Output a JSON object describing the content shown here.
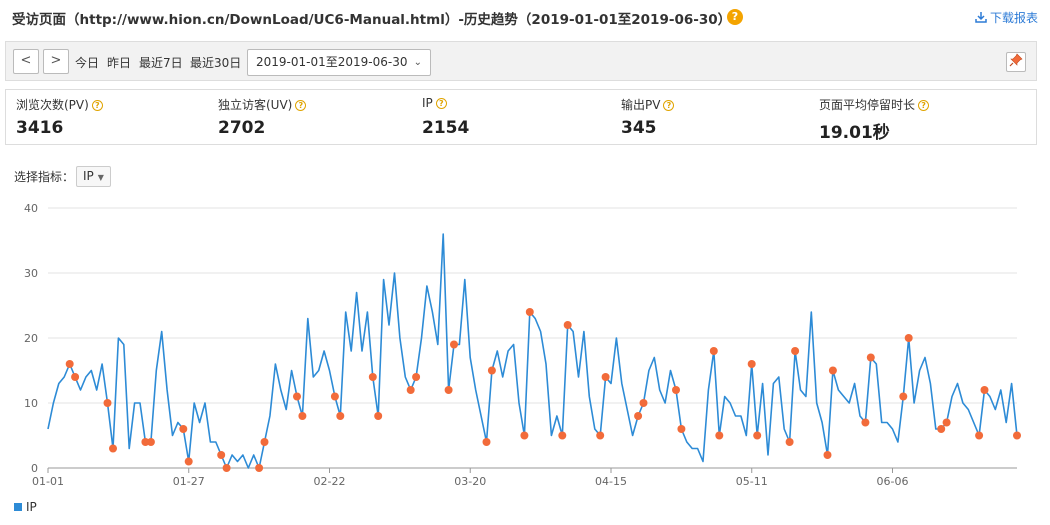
{
  "header": {
    "title": "受访页面（http://www.hion.cn/DownLoad/UC6-Manual.html）-历史趋势（2019-01-01至2019-06-30）",
    "help_glyph": "?",
    "download_label": "下载报表"
  },
  "toolbar": {
    "prev_glyph": "<",
    "next_glyph": ">",
    "quick_ranges": [
      "今日",
      "昨日",
      "最近7日",
      "最近30日"
    ],
    "date_range": "2019-01-01至2019-06-30"
  },
  "stats": [
    {
      "label": "浏览次数(PV)",
      "value": "3416"
    },
    {
      "label": "独立访客(UV)",
      "value": "2702"
    },
    {
      "label": "IP",
      "value": "2154"
    },
    {
      "label": "输出PV",
      "value": "345"
    },
    {
      "label": "页面平均停留时长",
      "value": "19.01秒"
    }
  ],
  "metric_selector": {
    "label": "选择指标：",
    "selected": "IP"
  },
  "colors": {
    "line": "#2d8bd6",
    "weekend_marker": "#f26b3a",
    "help_badge": "#f4a400",
    "link": "#2d7bd6"
  },
  "chart_data": {
    "type": "line",
    "x_start": "2019-01-01",
    "x_end": "2019-06-30",
    "x_tick_labels": [
      "01-01",
      "01-27",
      "02-22",
      "03-20",
      "04-15",
      "05-11",
      "06-06"
    ],
    "ylim": [
      0,
      40
    ],
    "y_ticks": [
      0,
      10,
      20,
      30,
      40
    ],
    "grid": true,
    "legend_position": "bottom-left",
    "marked_points": "weekends",
    "series": [
      {
        "name": "IP",
        "values": [
          6,
          10,
          13,
          14,
          16,
          14,
          12,
          14,
          15,
          12,
          16,
          10,
          3,
          20,
          19,
          3,
          10,
          10,
          4,
          4,
          15,
          21,
          12,
          5,
          7,
          6,
          1,
          10,
          7,
          10,
          4,
          4,
          2,
          0,
          2,
          1,
          2,
          0,
          2,
          0,
          4,
          8,
          16,
          12,
          9,
          15,
          11,
          8,
          23,
          14,
          15,
          18,
          15,
          11,
          8,
          24,
          18,
          27,
          18,
          24,
          14,
          8,
          29,
          22,
          30,
          20,
          14,
          12,
          14,
          20,
          28,
          24,
          19,
          36,
          12,
          19,
          19,
          29,
          17,
          12,
          8,
          4,
          15,
          18,
          14,
          18,
          19,
          10,
          5,
          24,
          23,
          21,
          16,
          5,
          8,
          5,
          22,
          21,
          14,
          21,
          11,
          6,
          5,
          14,
          13,
          20,
          13,
          9,
          5,
          8,
          10,
          15,
          17,
          12,
          10,
          15,
          12,
          6,
          4,
          3,
          3,
          1,
          12,
          18,
          5,
          11,
          10,
          8,
          8,
          5,
          16,
          5,
          13,
          2,
          13,
          14,
          6,
          4,
          18,
          12,
          11,
          24,
          10,
          7,
          2,
          15,
          12,
          11,
          10,
          13,
          8,
          7,
          17,
          16,
          7,
          7,
          6,
          4,
          11,
          20,
          10,
          15,
          17,
          13,
          6,
          6,
          7,
          11,
          13,
          10,
          9,
          7,
          5,
          12,
          11,
          9,
          12,
          7,
          13,
          5
        ]
      }
    ]
  }
}
